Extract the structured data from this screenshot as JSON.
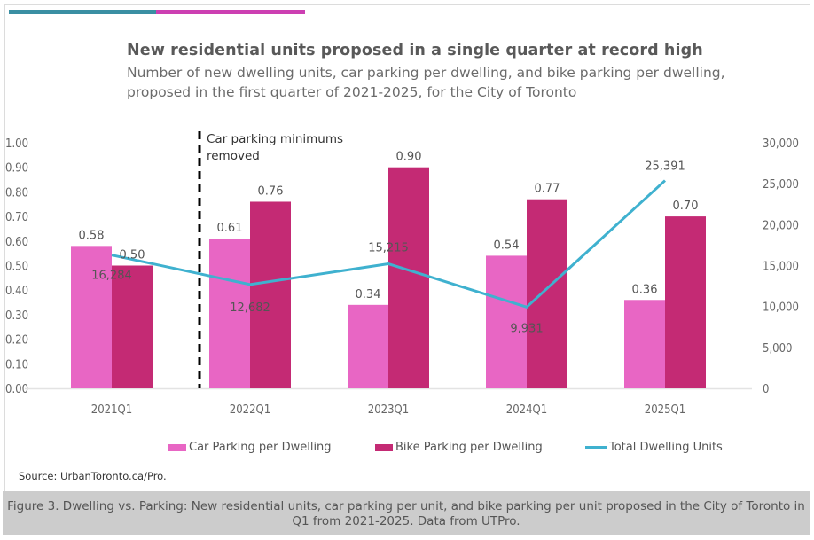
{
  "header": {
    "title": "New residential units proposed in a single quarter at record high",
    "subtitle_line1": "Number of new dwelling units, car parking per dwelling, and bike parking per dwelling,",
    "subtitle_line2": "proposed in the first quarter of 2021-2025, for the City of Toronto"
  },
  "colors": {
    "accent_teal": "#3a8fa3",
    "accent_pink": "#cc3fb2",
    "car_parking": "#e866c4",
    "bike_parking": "#c42a74",
    "dwelling_line": "#3fb1cf",
    "annotation_line": "#000000"
  },
  "chart_data": {
    "type": "bar",
    "title": "New residential units proposed in a single quarter at record high",
    "categories": [
      "2021Q1",
      "2022Q1",
      "2023Q1",
      "2024Q1",
      "2025Q1"
    ],
    "series": [
      {
        "name": "Car Parking per Dwelling",
        "type": "bar",
        "axis": "left",
        "values": [
          0.58,
          0.61,
          0.34,
          0.54,
          0.36
        ],
        "labels": [
          "0.58",
          "0.61",
          "0.34",
          "0.54",
          "0.36"
        ]
      },
      {
        "name": "Bike Parking per Dwelling",
        "type": "bar",
        "axis": "left",
        "values": [
          0.5,
          0.76,
          0.9,
          0.77,
          0.7
        ],
        "labels": [
          "0.50",
          "0.76",
          "0.90",
          "0.77",
          "0.70"
        ]
      },
      {
        "name": "Total Dwelling Units",
        "type": "line",
        "axis": "right",
        "values": [
          16284,
          12682,
          15215,
          9931,
          25391
        ],
        "labels": [
          "16,284",
          "12,682",
          "15,215",
          "9,931",
          "25,391"
        ]
      }
    ],
    "y_left": {
      "ylim": [
        0,
        1.0
      ],
      "ticks": [
        "0.00",
        "0.10",
        "0.20",
        "0.30",
        "0.40",
        "0.50",
        "0.60",
        "0.70",
        "0.80",
        "0.90",
        "1.00"
      ]
    },
    "y_right": {
      "ylim": [
        0,
        30000
      ],
      "ticks": [
        "0",
        "5,000",
        "10,000",
        "15,000",
        "20,000",
        "25,000",
        "30,000"
      ]
    },
    "annotation": {
      "text_line1": "Car parking minimums",
      "text_line2": "removed",
      "between": [
        "2021Q1",
        "2022Q1"
      ],
      "style": "dashed vertical line"
    },
    "legend": {
      "placement": "bottom",
      "entries": [
        "Car Parking per Dwelling",
        "Bike Parking per Dwelling",
        "Total Dwelling Units"
      ]
    },
    "grid": false
  },
  "source": "Source: UrbanToronto.ca/Pro.",
  "caption": "Figure 3. Dwelling vs. Parking: New residential units, car parking per unit, and bike parking per unit proposed in the City of Toronto in Q1 from 2021-2025. Data from UTPro."
}
